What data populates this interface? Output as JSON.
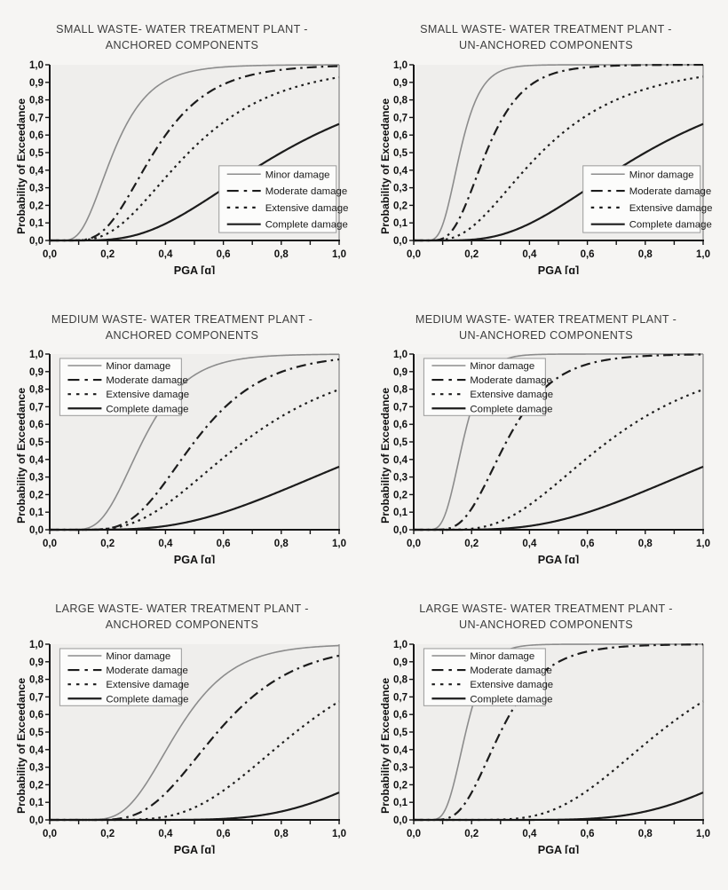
{
  "figure": {
    "kind": "fragility-curves-grid",
    "rows": 3,
    "cols": 2
  },
  "colors": {
    "page_bg": "#f6f5f3",
    "plot_bg": "#efeeec",
    "axis": "#161616",
    "right_border": "#6f6f6f",
    "curve_dark": "#1c1c1c",
    "minor_gray": "#8c8c8c",
    "legend_bg": "#fcfcfb",
    "legend_border": "#9a9a9a",
    "title_text": "#3d3d3d",
    "tick_text": "#111111"
  },
  "chart_data": {
    "type": "line",
    "xlabel": "PGA [g]",
    "ylabel": "Probability of Exceedance",
    "xlim": [
      0,
      1
    ],
    "ylim": [
      0,
      1
    ],
    "x_tick_step": 0.1,
    "x_label_step": 0.2,
    "x_tick_labels": [
      "0,0",
      "0,2",
      "0,4",
      "0,6",
      "0,8",
      "1,0"
    ],
    "y_tick_step": 0.1,
    "y_tick_labels": [
      "0,0",
      "0,1",
      "0,2",
      "0,3",
      "0,4",
      "0,5",
      "0,6",
      "0,7",
      "0,8",
      "0,9",
      "1,0"
    ],
    "grid": "off",
    "legend_entries": [
      "Minor damage",
      "Moderate damage",
      "Extensive damage",
      "Complete damage"
    ],
    "line_styles": {
      "minor": {
        "color": "#8c8c8c",
        "width": 1.6,
        "dash": null,
        "legend_dash": null
      },
      "moderate": {
        "color": "#1c1c1c",
        "width": 2.2,
        "dash": "11 5 2.5 5",
        "legend_dash": "13 6 3.5 6"
      },
      "extensive": {
        "color": "#1c1c1c",
        "width": 2.2,
        "dash": "2.6 4.6",
        "legend_dash": "3.5 6"
      },
      "complete": {
        "color": "#1c1c1c",
        "width": 2.2,
        "dash": null,
        "legend_dash": null
      }
    },
    "legend_boxes": {
      "lower-right": {
        "x0": 0.585,
        "y0": 0.045,
        "x1": 0.99,
        "y1": 0.425
      },
      "upper-left": {
        "x0": 0.035,
        "y0": 0.65,
        "x1": 0.455,
        "y1": 0.975
      }
    },
    "panels": [
      {
        "id": "small-anchored",
        "title_line1": "SMALL WASTE- WATER TREATMENT PLANT -",
        "title_line2": "ANCHORED COMPONENTS",
        "legend_pos": "lower-right",
        "series": [
          {
            "name": "Minor damage",
            "style": "minor",
            "median": 0.22,
            "beta": 0.45,
            "points_x": [
              0.2,
              0.4,
              0.6,
              0.8,
              1.0
            ],
            "points_y": [
              0.42,
              0.91,
              0.99,
              1.0,
              1.0
            ]
          },
          {
            "name": "Moderate damage",
            "style": "moderate",
            "median": 0.36,
            "beta": 0.42,
            "points_x": [
              0.2,
              0.4,
              0.6,
              0.8,
              1.0
            ],
            "points_y": [
              0.08,
              0.6,
              0.89,
              0.97,
              0.99
            ]
          },
          {
            "name": "Extensive damage",
            "style": "extensive",
            "median": 0.48,
            "beta": 0.5,
            "points_x": [
              0.2,
              0.4,
              0.6,
              0.8,
              1.0
            ],
            "points_y": [
              0.04,
              0.36,
              0.67,
              0.85,
              0.93
            ]
          },
          {
            "name": "Complete damage",
            "style": "complete",
            "median": 0.8,
            "beta": 0.53,
            "points_x": [
              0.2,
              0.4,
              0.6,
              0.8,
              1.0
            ],
            "points_y": [
              0.0,
              0.1,
              0.29,
              0.5,
              0.66
            ]
          }
        ]
      },
      {
        "id": "small-unanchored",
        "title_line1": "SMALL WASTE- WATER TREATMENT PLANT -",
        "title_line2": "UN-ANCHORED COMPONENTS",
        "legend_pos": "lower-right",
        "series": [
          {
            "name": "Minor damage",
            "style": "minor",
            "median": 0.16,
            "beta": 0.35,
            "points_x": [
              0.2,
              0.4,
              0.6,
              0.8,
              1.0
            ],
            "points_y": [
              0.74,
              1.0,
              1.0,
              1.0,
              1.0
            ]
          },
          {
            "name": "Moderate damage",
            "style": "moderate",
            "median": 0.25,
            "beta": 0.4,
            "points_x": [
              0.2,
              0.4,
              0.6,
              0.8,
              1.0
            ],
            "points_y": [
              0.29,
              0.88,
              0.99,
              1.0,
              1.0
            ]
          },
          {
            "name": "Extensive damage",
            "style": "extensive",
            "median": 0.44,
            "beta": 0.55,
            "points_x": [
              0.2,
              0.4,
              0.6,
              0.8,
              1.0
            ],
            "points_y": [
              0.08,
              0.43,
              0.71,
              0.86,
              0.93
            ]
          },
          {
            "name": "Complete damage",
            "style": "complete",
            "median": 0.8,
            "beta": 0.53,
            "points_x": [
              0.2,
              0.4,
              0.6,
              0.8,
              1.0
            ],
            "points_y": [
              0.0,
              0.1,
              0.29,
              0.5,
              0.66
            ]
          }
        ]
      },
      {
        "id": "medium-anchored",
        "title_line1": "MEDIUM WASTE- WATER TREATMENT PLANT -",
        "title_line2": "ANCHORED COMPONENTS",
        "legend_pos": "upper-left",
        "series": [
          {
            "name": "Minor damage",
            "style": "minor",
            "median": 0.32,
            "beta": 0.38,
            "points_x": [
              0.2,
              0.4,
              0.6,
              0.8,
              1.0
            ],
            "points_y": [
              0.11,
              0.72,
              0.95,
              0.99,
              1.0
            ]
          },
          {
            "name": "Moderate damage",
            "style": "moderate",
            "median": 0.5,
            "beta": 0.37,
            "points_x": [
              0.2,
              0.4,
              0.6,
              0.8,
              1.0
            ],
            "points_y": [
              0.01,
              0.27,
              0.69,
              0.9,
              0.97
            ]
          },
          {
            "name": "Extensive damage",
            "style": "extensive",
            "median": 0.67,
            "beta": 0.48,
            "points_x": [
              0.2,
              0.4,
              0.6,
              0.8,
              1.0
            ],
            "points_y": [
              0.01,
              0.14,
              0.41,
              0.64,
              0.79
            ]
          },
          {
            "name": "Complete damage",
            "style": "complete",
            "median": 1.22,
            "beta": 0.55,
            "points_x": [
              0.2,
              0.4,
              0.6,
              0.8,
              1.0
            ],
            "points_y": [
              0.0,
              0.02,
              0.1,
              0.22,
              0.36
            ]
          }
        ]
      },
      {
        "id": "medium-unanchored",
        "title_line1": "MEDIUM WASTE- WATER TREATMENT PLANT -",
        "title_line2": "UN-ANCHORED COMPONENTS",
        "legend_pos": "upper-left",
        "series": [
          {
            "name": "Minor damage",
            "style": "minor",
            "median": 0.17,
            "beta": 0.33,
            "points_x": [
              0.2,
              0.4,
              0.6,
              0.8,
              1.0
            ],
            "points_y": [
              0.69,
              1.0,
              1.0,
              1.0,
              1.0
            ]
          },
          {
            "name": "Moderate damage",
            "style": "moderate",
            "median": 0.32,
            "beta": 0.4,
            "points_x": [
              0.2,
              0.4,
              0.6,
              0.8,
              1.0
            ],
            "points_y": [
              0.12,
              0.71,
              0.94,
              0.99,
              1.0
            ]
          },
          {
            "name": "Extensive damage",
            "style": "extensive",
            "median": 0.67,
            "beta": 0.48,
            "points_x": [
              0.2,
              0.4,
              0.6,
              0.8,
              1.0
            ],
            "points_y": [
              0.01,
              0.14,
              0.41,
              0.64,
              0.79
            ]
          },
          {
            "name": "Complete damage",
            "style": "complete",
            "median": 1.22,
            "beta": 0.55,
            "points_x": [
              0.2,
              0.4,
              0.6,
              0.8,
              1.0
            ],
            "points_y": [
              0.0,
              0.02,
              0.1,
              0.22,
              0.36
            ]
          }
        ]
      },
      {
        "id": "large-anchored",
        "title_line1": "LARGE WASTE- WATER TREATMENT PLANT -",
        "title_line2": "ANCHORED COMPONENTS",
        "legend_pos": "upper-left",
        "series": [
          {
            "name": "Minor damage",
            "style": "minor",
            "median": 0.44,
            "beta": 0.34,
            "points_x": [
              0.2,
              0.4,
              0.6,
              0.8,
              1.0
            ],
            "points_y": [
              0.01,
              0.39,
              0.82,
              0.96,
              0.99
            ]
          },
          {
            "name": "Moderate damage",
            "style": "moderate",
            "median": 0.58,
            "beta": 0.36,
            "points_x": [
              0.2,
              0.4,
              0.6,
              0.8,
              1.0
            ],
            "points_y": [
              0.0,
              0.15,
              0.54,
              0.81,
              0.93
            ]
          },
          {
            "name": "Extensive damage",
            "style": "extensive",
            "median": 0.85,
            "beta": 0.36,
            "points_x": [
              0.2,
              0.4,
              0.6,
              0.8,
              1.0
            ],
            "points_y": [
              0.0,
              0.02,
              0.17,
              0.43,
              0.68
            ]
          },
          {
            "name": "Complete damage",
            "style": "complete",
            "median": 1.41,
            "beta": 0.34,
            "points_x": [
              0.2,
              0.4,
              0.6,
              0.8,
              1.0
            ],
            "points_y": [
              0.0,
              0.0,
              0.01,
              0.05,
              0.16
            ]
          }
        ]
      },
      {
        "id": "large-unanchored",
        "title_line1": "LARGE WASTE- WATER TREATMENT PLANT -",
        "title_line2": "UN-ANCHORED COMPONENTS",
        "legend_pos": "upper-left",
        "series": [
          {
            "name": "Minor damage",
            "style": "minor",
            "median": 0.18,
            "beta": 0.32,
            "points_x": [
              0.2,
              0.4,
              0.6,
              0.8,
              1.0
            ],
            "points_y": [
              0.63,
              0.99,
              1.0,
              1.0,
              1.0
            ]
          },
          {
            "name": "Moderate damage",
            "style": "moderate",
            "median": 0.3,
            "beta": 0.4,
            "points_x": [
              0.2,
              0.4,
              0.6,
              0.8,
              1.0
            ],
            "points_y": [
              0.16,
              0.76,
              0.96,
              0.99,
              1.0
            ]
          },
          {
            "name": "Extensive damage",
            "style": "extensive",
            "median": 0.85,
            "beta": 0.36,
            "points_x": [
              0.2,
              0.4,
              0.6,
              0.8,
              1.0
            ],
            "points_y": [
              0.0,
              0.02,
              0.17,
              0.43,
              0.68
            ]
          },
          {
            "name": "Complete damage",
            "style": "complete",
            "median": 1.41,
            "beta": 0.34,
            "points_x": [
              0.2,
              0.4,
              0.6,
              0.8,
              1.0
            ],
            "points_y": [
              0.0,
              0.0,
              0.01,
              0.05,
              0.16
            ]
          }
        ]
      }
    ]
  }
}
